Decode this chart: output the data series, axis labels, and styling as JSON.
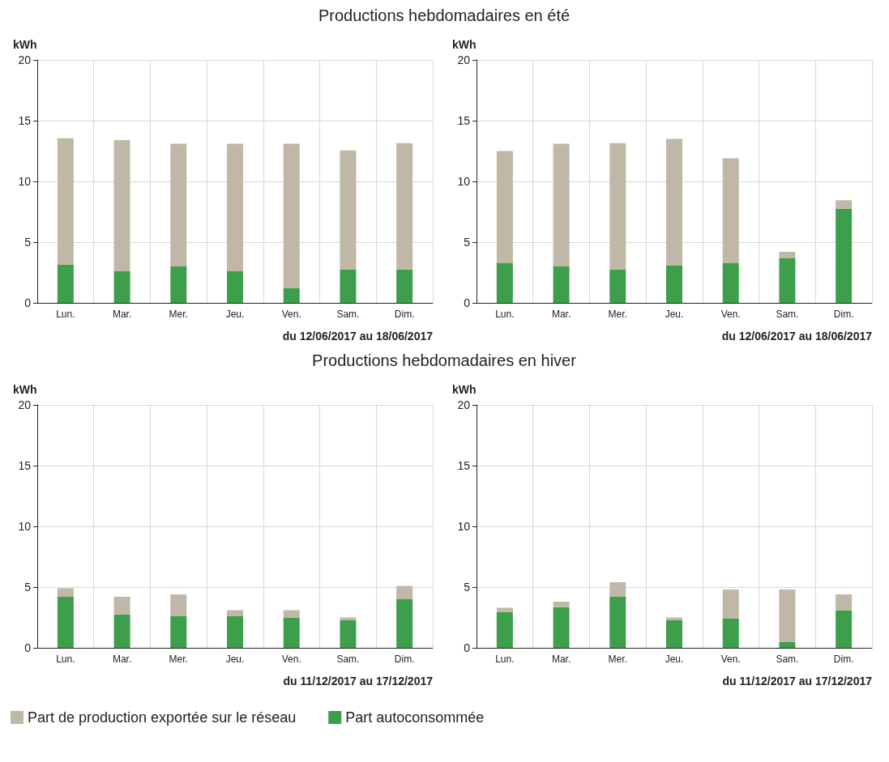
{
  "chart_data": [
    {
      "type": "bar",
      "title": "Productions hebdomadaires en été",
      "ylabel": "kWh",
      "xlabel": "du 12/06/2017 au 18/06/2017",
      "categories": [
        "Lun.",
        "Mar.",
        "Mer.",
        "Jeu.",
        "Ven.",
        "Sam.",
        "Dim."
      ],
      "stacked": true,
      "ylim": [
        0,
        20
      ],
      "yticks": [
        0,
        5,
        10,
        15,
        20
      ],
      "grid": true,
      "legend": false,
      "series": [
        {
          "color": "#3d9e4c",
          "values": [
            3.15,
            2.6,
            3.0,
            2.6,
            1.2,
            2.75,
            2.75
          ]
        },
        {
          "color": "#bfb8a6",
          "values": [
            10.4,
            10.8,
            10.1,
            10.5,
            11.9,
            9.8,
            10.4
          ]
        }
      ]
    },
    {
      "type": "bar",
      "ylabel": "kWh",
      "xlabel": "du 12/06/2017 au 18/06/2017",
      "categories": [
        "Lun.",
        "Mar.",
        "Mer.",
        "Jeu.",
        "Ven.",
        "Sam.",
        "Dim."
      ],
      "stacked": true,
      "ylim": [
        0,
        20
      ],
      "yticks": [
        0,
        5,
        10,
        15,
        20
      ],
      "grid": true,
      "legend": false,
      "series": [
        {
          "color": "#3d9e4c",
          "values": [
            3.3,
            3.0,
            2.75,
            3.1,
            3.3,
            3.7,
            7.75
          ]
        },
        {
          "color": "#bfb8a6",
          "values": [
            9.2,
            10.1,
            10.4,
            10.4,
            8.6,
            0.5,
            0.7
          ]
        }
      ]
    },
    {
      "type": "bar",
      "title": "Productions hebdomadaires en hiver",
      "ylabel": "kWh",
      "xlabel": "du 11/12/2017 au 17/12/2017",
      "categories": [
        "Lun.",
        "Mar.",
        "Mer.",
        "Jeu.",
        "Ven.",
        "Sam.",
        "Dim."
      ],
      "stacked": true,
      "ylim": [
        0,
        20
      ],
      "yticks": [
        0,
        5,
        10,
        15,
        20
      ],
      "grid": true,
      "legend": "bottom left",
      "series": [
        {
          "name": "Part autoconsommée",
          "color": "#3d9e4c",
          "values": [
            4.2,
            2.75,
            2.6,
            2.6,
            2.5,
            2.3,
            4.0
          ]
        },
        {
          "name": "Part de production exportée sur le réseau",
          "color": "#bfb8a6",
          "values": [
            0.7,
            1.45,
            1.8,
            0.5,
            0.6,
            0.2,
            1.1
          ]
        }
      ]
    },
    {
      "type": "bar",
      "ylabel": "kWh",
      "xlabel": "du 11/12/2017 au 17/12/2017",
      "categories": [
        "Lun.",
        "Mar.",
        "Mer.",
        "Jeu.",
        "Ven.",
        "Sam.",
        "Dim."
      ],
      "stacked": true,
      "ylim": [
        0,
        20
      ],
      "yticks": [
        0,
        5,
        10,
        15,
        20
      ],
      "grid": true,
      "legend": false,
      "series": [
        {
          "color": "#3d9e4c",
          "values": [
            2.95,
            3.35,
            4.2,
            2.3,
            2.4,
            0.5,
            3.1
          ]
        },
        {
          "color": "#bfb8a6",
          "values": [
            0.35,
            0.45,
            1.2,
            0.2,
            2.4,
            4.3,
            1.3
          ]
        }
      ]
    }
  ]
}
